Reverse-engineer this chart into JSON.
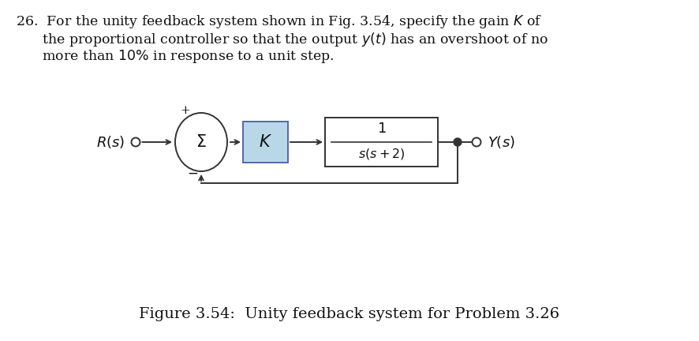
{
  "bg_color": "#ffffff",
  "text_color": "#111111",
  "fig_width": 8.87,
  "fig_height": 4.32,
  "dpi": 100,
  "problem_lines": [
    "26.  For the unity feedback system shown in Fig. 3.54, specify the gain $K$ of",
    "      the proportional controller so that the output $y(t)$ has an overshoot of no",
    "      more than $10\\%$ in response to a unit step."
  ],
  "figure_caption": "Figure 3.54:  Unity feedback system for Problem 3.26",
  "K_box_color": "#b8d8e8",
  "K_box_edge_color": "#5566aa",
  "tf_box_color": "#ffffff",
  "tf_box_edge_color": "#333333",
  "line_color": "#333333",
  "sum_edge_color": "#333333",
  "text_fontsize": 12.5,
  "caption_fontsize": 14.0,
  "diagram_fontsize": 13.0
}
